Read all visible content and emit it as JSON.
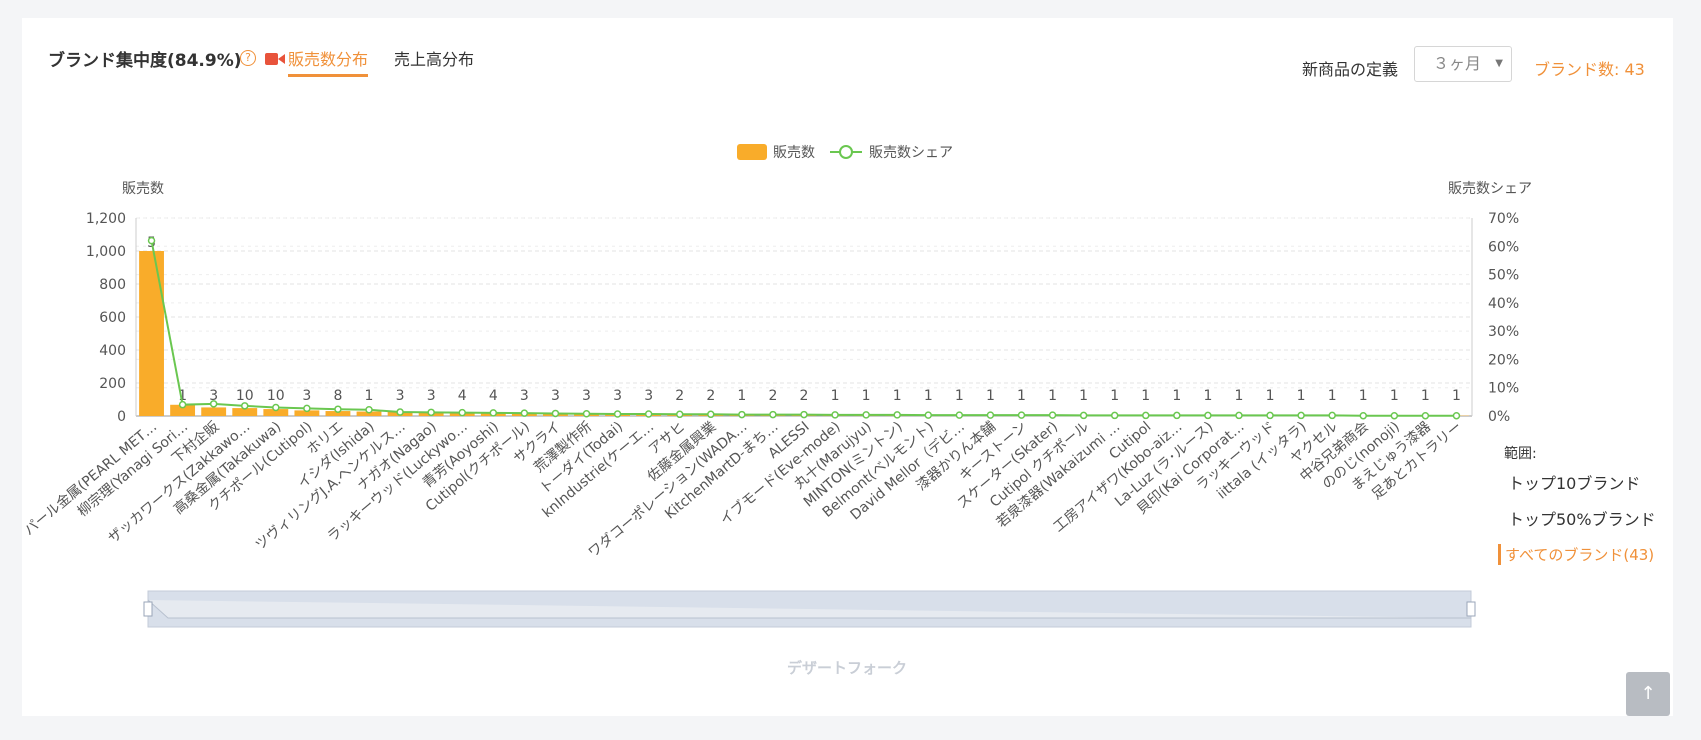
{
  "header": {
    "title": "ブランド集中度(84.9%)",
    "help_icon": "question-circle-icon",
    "video_icon": "video-camera-icon",
    "tabs": [
      {
        "label": "販売数分布",
        "active": true
      },
      {
        "label": "売上高分布",
        "active": false
      }
    ],
    "new_product_label": "新商品の定義",
    "period_select": "３ヶ月",
    "brand_count": "ブランド数: 43"
  },
  "range": {
    "title": "範囲:",
    "options": [
      {
        "label": "トップ10ブランド",
        "active": false
      },
      {
        "label": "トップ50%ブランド",
        "active": false
      },
      {
        "label": "すべてのブランド(43)",
        "active": true
      }
    ]
  },
  "dataZoom_label": "デザートフォーク",
  "colors": {
    "accent": "#f0913a",
    "bar": "#f9ac2a",
    "line": "#6ac750"
  },
  "chart_data": {
    "type": "bar",
    "legend": [
      "販売数",
      "販売数シェア"
    ],
    "ylabel": "販売数",
    "y2label": "販売数シェア",
    "ylim": [
      0,
      1200
    ],
    "y2lim": [
      0,
      70
    ],
    "yticks": [
      "0",
      "200",
      "400",
      "600",
      "800",
      "1,000",
      "1,200"
    ],
    "y2ticks": [
      "0%",
      "10%",
      "20%",
      "30%",
      "40%",
      "50%",
      "60%",
      "70%"
    ],
    "categories": [
      "パール金属(PEARL MET…",
      "柳宗理(Yanagi Sori…",
      "下村企販",
      "ザッカワークス(Zakkawo…",
      "高桑金属(Takakuwa)",
      "クチポール(Cutipol)",
      "ホリエ",
      "イシダ(Ishida)",
      "ツヴィリングJ.A.ヘンケルス…",
      "ナガオ(Nagao)",
      "ラッキーウッド(Luckywo…",
      "青芳(Aoyoshi)",
      "Cutipol(クチポール)",
      "サクライ",
      "荒澤製作所",
      "トーダイ(Todai)",
      "knIndustrie(ケーエ…",
      "アサヒ",
      "佐藤金属興業",
      "ワダコーポレーション(WADA…",
      "KitchenMartD-まち…",
      "ALESSI",
      "イブモード(Eve-mode)",
      "丸十(Marujyu)",
      "MINTON(ミントン)",
      "Belmont(ベルモント)",
      "David Mellor（デビ…",
      "漆器かりん本舗",
      "キーストーン",
      "スケーター(Skater)",
      "Cutipol クチポール",
      "若泉漆器(Wakaizumi …",
      "Cutipol",
      "工房アイザワ(Kobo-aiz…",
      "La-Luz (ラ･ルース)",
      "貝印(Kai Corporat…",
      "ラッキーウッド",
      "iittala (イッタラ)",
      "ヤクセル",
      "中谷兄弟商会",
      "ののじ(nonoji)",
      "まえじゅう漆器",
      "足あとカトラリー"
    ],
    "series": [
      {
        "name": "販売数",
        "type": "bar",
        "values": [
          1000,
          68,
          52,
          48,
          42,
          34,
          30,
          27,
          25,
          22,
          20,
          18,
          16,
          14,
          10,
          10,
          9,
          8,
          8,
          7,
          7,
          6,
          6,
          5,
          5,
          5,
          5,
          4,
          4,
          4,
          4,
          3,
          3,
          3,
          3,
          3,
          3,
          2,
          2,
          2,
          2,
          2,
          2
        ],
        "labels": [
          "5",
          "1",
          "3",
          "10",
          "10",
          "3",
          "8",
          "1",
          "3",
          "3",
          "4",
          "4",
          "3",
          "3",
          "3",
          "3",
          "3",
          "2",
          "2",
          "1",
          "2",
          "2",
          "1",
          "1",
          "1",
          "1",
          "1",
          "1",
          "1",
          "1",
          "1",
          "1",
          "1",
          "1",
          "1",
          "1",
          "1",
          "1",
          "1",
          "1",
          "1",
          "1",
          "1"
        ]
      },
      {
        "name": "販売数シェア",
        "type": "line",
        "values": [
          62,
          4,
          4.3,
          3.6,
          3.0,
          2.7,
          2.4,
          2.2,
          1.4,
          1.3,
          1.2,
          1.1,
          1.0,
          0.9,
          0.8,
          0.7,
          0.7,
          0.6,
          0.6,
          0.5,
          0.5,
          0.5,
          0.4,
          0.4,
          0.4,
          0.3,
          0.3,
          0.3,
          0.3,
          0.3,
          0.2,
          0.2,
          0.2,
          0.2,
          0.2,
          0.2,
          0.2,
          0.2,
          0.2,
          0.1,
          0.1,
          0.1,
          0.1
        ]
      }
    ]
  }
}
